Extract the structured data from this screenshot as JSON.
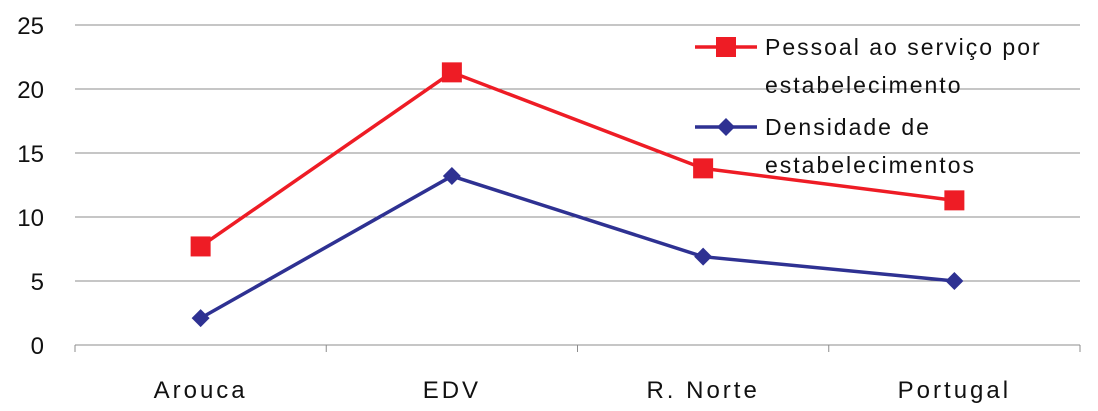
{
  "chart_data": {
    "type": "line",
    "title": "",
    "xlabel": "",
    "ylabel": "",
    "categories": [
      "Arouca",
      "EDV",
      "R. Norte",
      "Portugal"
    ],
    "ylim": [
      0,
      25
    ],
    "yticks": [
      0,
      5,
      10,
      15,
      20,
      25
    ],
    "grid": true,
    "legend_position": "top-right",
    "series": [
      {
        "name": "Pessoal ao serviço por estabelecimento",
        "legend_lines": [
          "Pessoal ao serviço por",
          "estabelecimento"
        ],
        "values": [
          7.7,
          21.3,
          13.8,
          11.3
        ],
        "color": "#ee1c25",
        "marker": "square"
      },
      {
        "name": "Densidade de estabelecimentos",
        "legend_lines": [
          "Densidade de",
          "estabelecimentos"
        ],
        "values": [
          2.1,
          13.2,
          6.9,
          5.0
        ],
        "color": "#2e3192",
        "marker": "diamond"
      }
    ]
  }
}
